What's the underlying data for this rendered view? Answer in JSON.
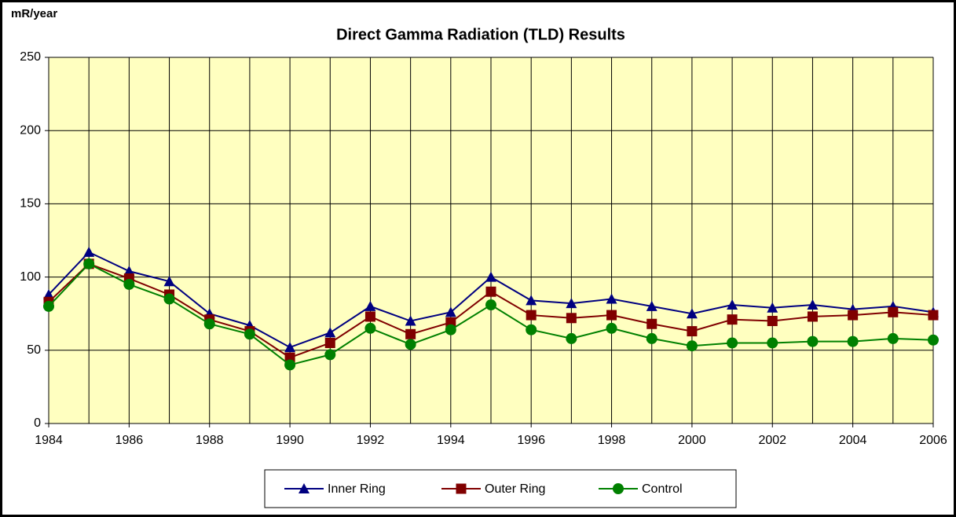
{
  "chart_data": {
    "type": "line",
    "title": "Direct Gamma Radiation (TLD) Results",
    "y_label": "mR/year",
    "x": [
      1984,
      1985,
      1986,
      1987,
      1988,
      1989,
      1990,
      1991,
      1992,
      1993,
      1994,
      1995,
      1996,
      1997,
      1998,
      1999,
      2000,
      2001,
      2002,
      2003,
      2004,
      2005,
      2006
    ],
    "series": [
      {
        "name": "Inner Ring",
        "color": "#000080",
        "marker": "triangle",
        "values": [
          88,
          117,
          104,
          97,
          75,
          67,
          52,
          62,
          80,
          70,
          76,
          100,
          84,
          82,
          85,
          80,
          75,
          81,
          79,
          81,
          78,
          80,
          76
        ]
      },
      {
        "name": "Outer Ring",
        "color": "#800000",
        "marker": "square",
        "values": [
          83,
          109,
          99,
          88,
          71,
          63,
          45,
          55,
          73,
          61,
          69,
          90,
          74,
          72,
          74,
          68,
          63,
          71,
          70,
          73,
          74,
          76,
          74
        ]
      },
      {
        "name": "Control",
        "color": "#008000",
        "marker": "circle",
        "values": [
          80,
          109,
          95,
          85,
          68,
          61,
          40,
          47,
          65,
          54,
          64,
          81,
          64,
          58,
          65,
          58,
          53,
          55,
          55,
          56,
          56,
          58,
          57
        ]
      }
    ],
    "xlim": [
      1984,
      2006
    ],
    "xticks": [
      1984,
      1986,
      1988,
      1990,
      1992,
      1994,
      1996,
      1998,
      2000,
      2002,
      2004,
      2006
    ],
    "ylim": [
      0,
      250
    ],
    "yticks": [
      0,
      50,
      100,
      150,
      200,
      250
    ],
    "grid": true,
    "plot_background": "#ffffc0",
    "legend": "bottom"
  }
}
